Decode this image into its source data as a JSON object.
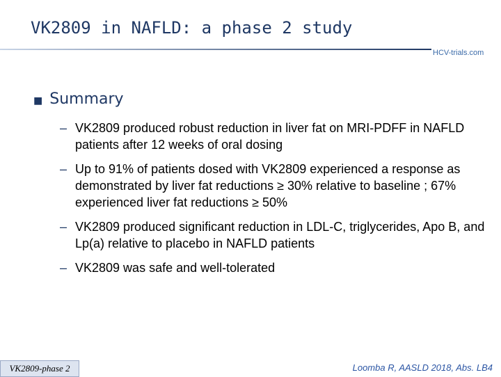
{
  "header": {
    "title": "VK2809 in NAFLD: a phase 2 study",
    "logo": "HCV-trials.com"
  },
  "section": {
    "heading": "Summary",
    "bullets": [
      "VK2809 produced robust reduction in liver fat on MRI-PDFF in NAFLD patients after 12 weeks of oral dosing",
      "Up to 91% of patients dosed with VK2809 experienced a response as demonstrated by liver fat reductions ≥ 30% relative to baseline ; 67% experienced liver fat reductions ≥ 50%",
      "VK2809 produced significant reduction in LDL-C, triglycerides, Apo B, and Lp(a) relative to placebo in NAFLD patients",
      "VK2809 was safe and well-tolerated"
    ]
  },
  "footer": {
    "tag": "VK2809-phase 2",
    "citation": "Loomba R, AASLD 2018, Abs. LB4"
  }
}
